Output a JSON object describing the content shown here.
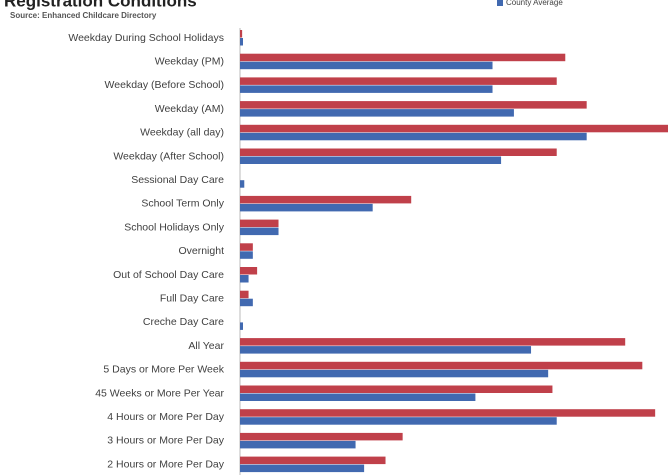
{
  "chart_data": {
    "type": "hbar",
    "title": "Registration Conditions",
    "subtitle": "Source: Enhanced Childcare Directory",
    "categories": [
      "Weekday During School Holidays",
      "Weekday (PM)",
      "Weekday (Before School)",
      "Weekday (AM)",
      "Weekday (all day)",
      "Weekday (After School)",
      "Sessional Day Care",
      "School Term Only",
      "School Holidays Only",
      "Overnight",
      "Out of School Day Care",
      "Full Day Care",
      "Creche Day Care",
      "All Year",
      "5 Days or More Per Week",
      "45 Weeks or More Per Year",
      "4 Hours or More Per Day",
      "3 Hours or More Per Day",
      "2 Hours or More Per Day"
    ],
    "series": [
      {
        "color": "#c0404a",
        "values": [
          0.5,
          76,
          74,
          81,
          100,
          74,
          0,
          40,
          9,
          3,
          4,
          2,
          0,
          90,
          94,
          73,
          97,
          38,
          34
        ]
      },
      {
        "name": "County Average",
        "color": "#4169b0",
        "values": [
          0.7,
          59,
          59,
          64,
          81,
          61,
          1,
          31,
          9,
          3,
          2,
          3,
          0.7,
          68,
          72,
          55,
          74,
          27,
          29
        ]
      }
    ],
    "xlim": [
      0,
      100
    ]
  }
}
